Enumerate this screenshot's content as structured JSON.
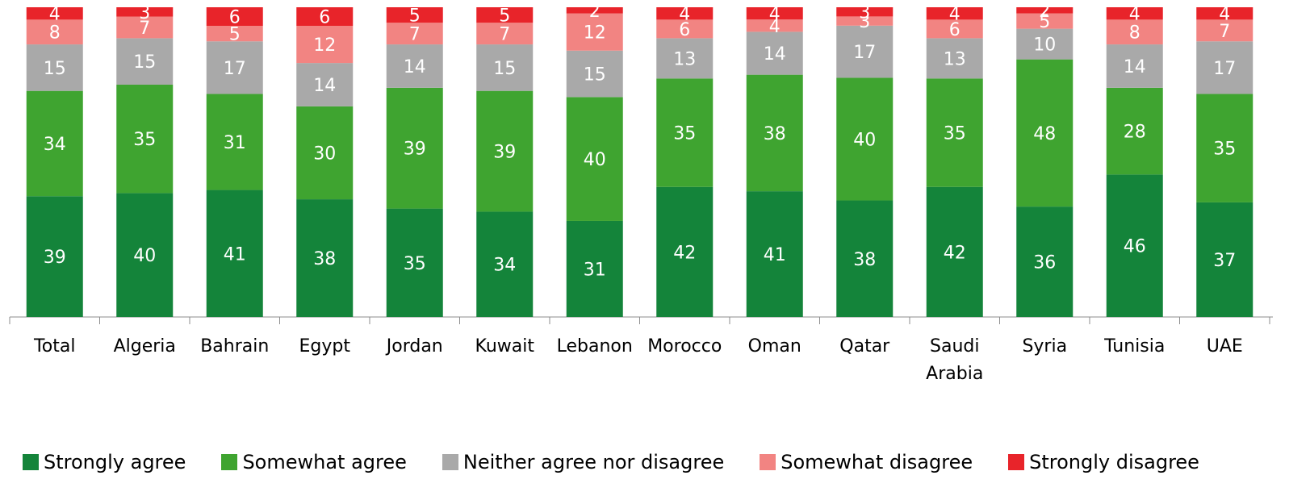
{
  "chart_data": {
    "type": "bar",
    "stacked": true,
    "percent_stacked": true,
    "categories": [
      "Total",
      "Algeria",
      "Bahrain",
      "Egypt",
      "Jordan",
      "Kuwait",
      "Lebanon",
      "Morocco",
      "Oman",
      "Qatar",
      "Saudi Arabia",
      "Syria",
      "Tunisia",
      "UAE"
    ],
    "category_lines": [
      [
        "Total"
      ],
      [
        "Algeria"
      ],
      [
        "Bahrain"
      ],
      [
        "Egypt"
      ],
      [
        "Jordan"
      ],
      [
        "Kuwait"
      ],
      [
        "Lebanon"
      ],
      [
        "Morocco"
      ],
      [
        "Oman"
      ],
      [
        "Qatar"
      ],
      [
        "Saudi",
        "Arabia"
      ],
      [
        "Syria"
      ],
      [
        "Tunisia"
      ],
      [
        "UAE"
      ]
    ],
    "series": [
      {
        "name": "Strongly agree",
        "color": "#14843a",
        "values": [
          39,
          40,
          41,
          38,
          35,
          34,
          31,
          42,
          41,
          38,
          42,
          36,
          46,
          37
        ]
      },
      {
        "name": "Somewhat agree",
        "color": "#3fa430",
        "values": [
          34,
          35,
          31,
          30,
          39,
          39,
          40,
          35,
          38,
          40,
          35,
          48,
          28,
          35
        ]
      },
      {
        "name": "Neither agree nor disagree",
        "color": "#a9a9a9",
        "values": [
          15,
          15,
          17,
          14,
          14,
          15,
          15,
          13,
          14,
          17,
          13,
          10,
          14,
          17
        ]
      },
      {
        "name": "Somewhat disagree",
        "color": "#f28482",
        "values": [
          8,
          7,
          5,
          12,
          7,
          7,
          12,
          6,
          4,
          3,
          6,
          5,
          8,
          7
        ]
      },
      {
        "name": "Strongly disagree",
        "color": "#e8242a",
        "values": [
          4,
          3,
          6,
          6,
          5,
          5,
          2,
          4,
          4,
          3,
          4,
          2,
          4,
          4
        ]
      }
    ],
    "legend_position": "bottom",
    "grid": false,
    "title": "",
    "xlabel": "",
    "ylabel": ""
  }
}
